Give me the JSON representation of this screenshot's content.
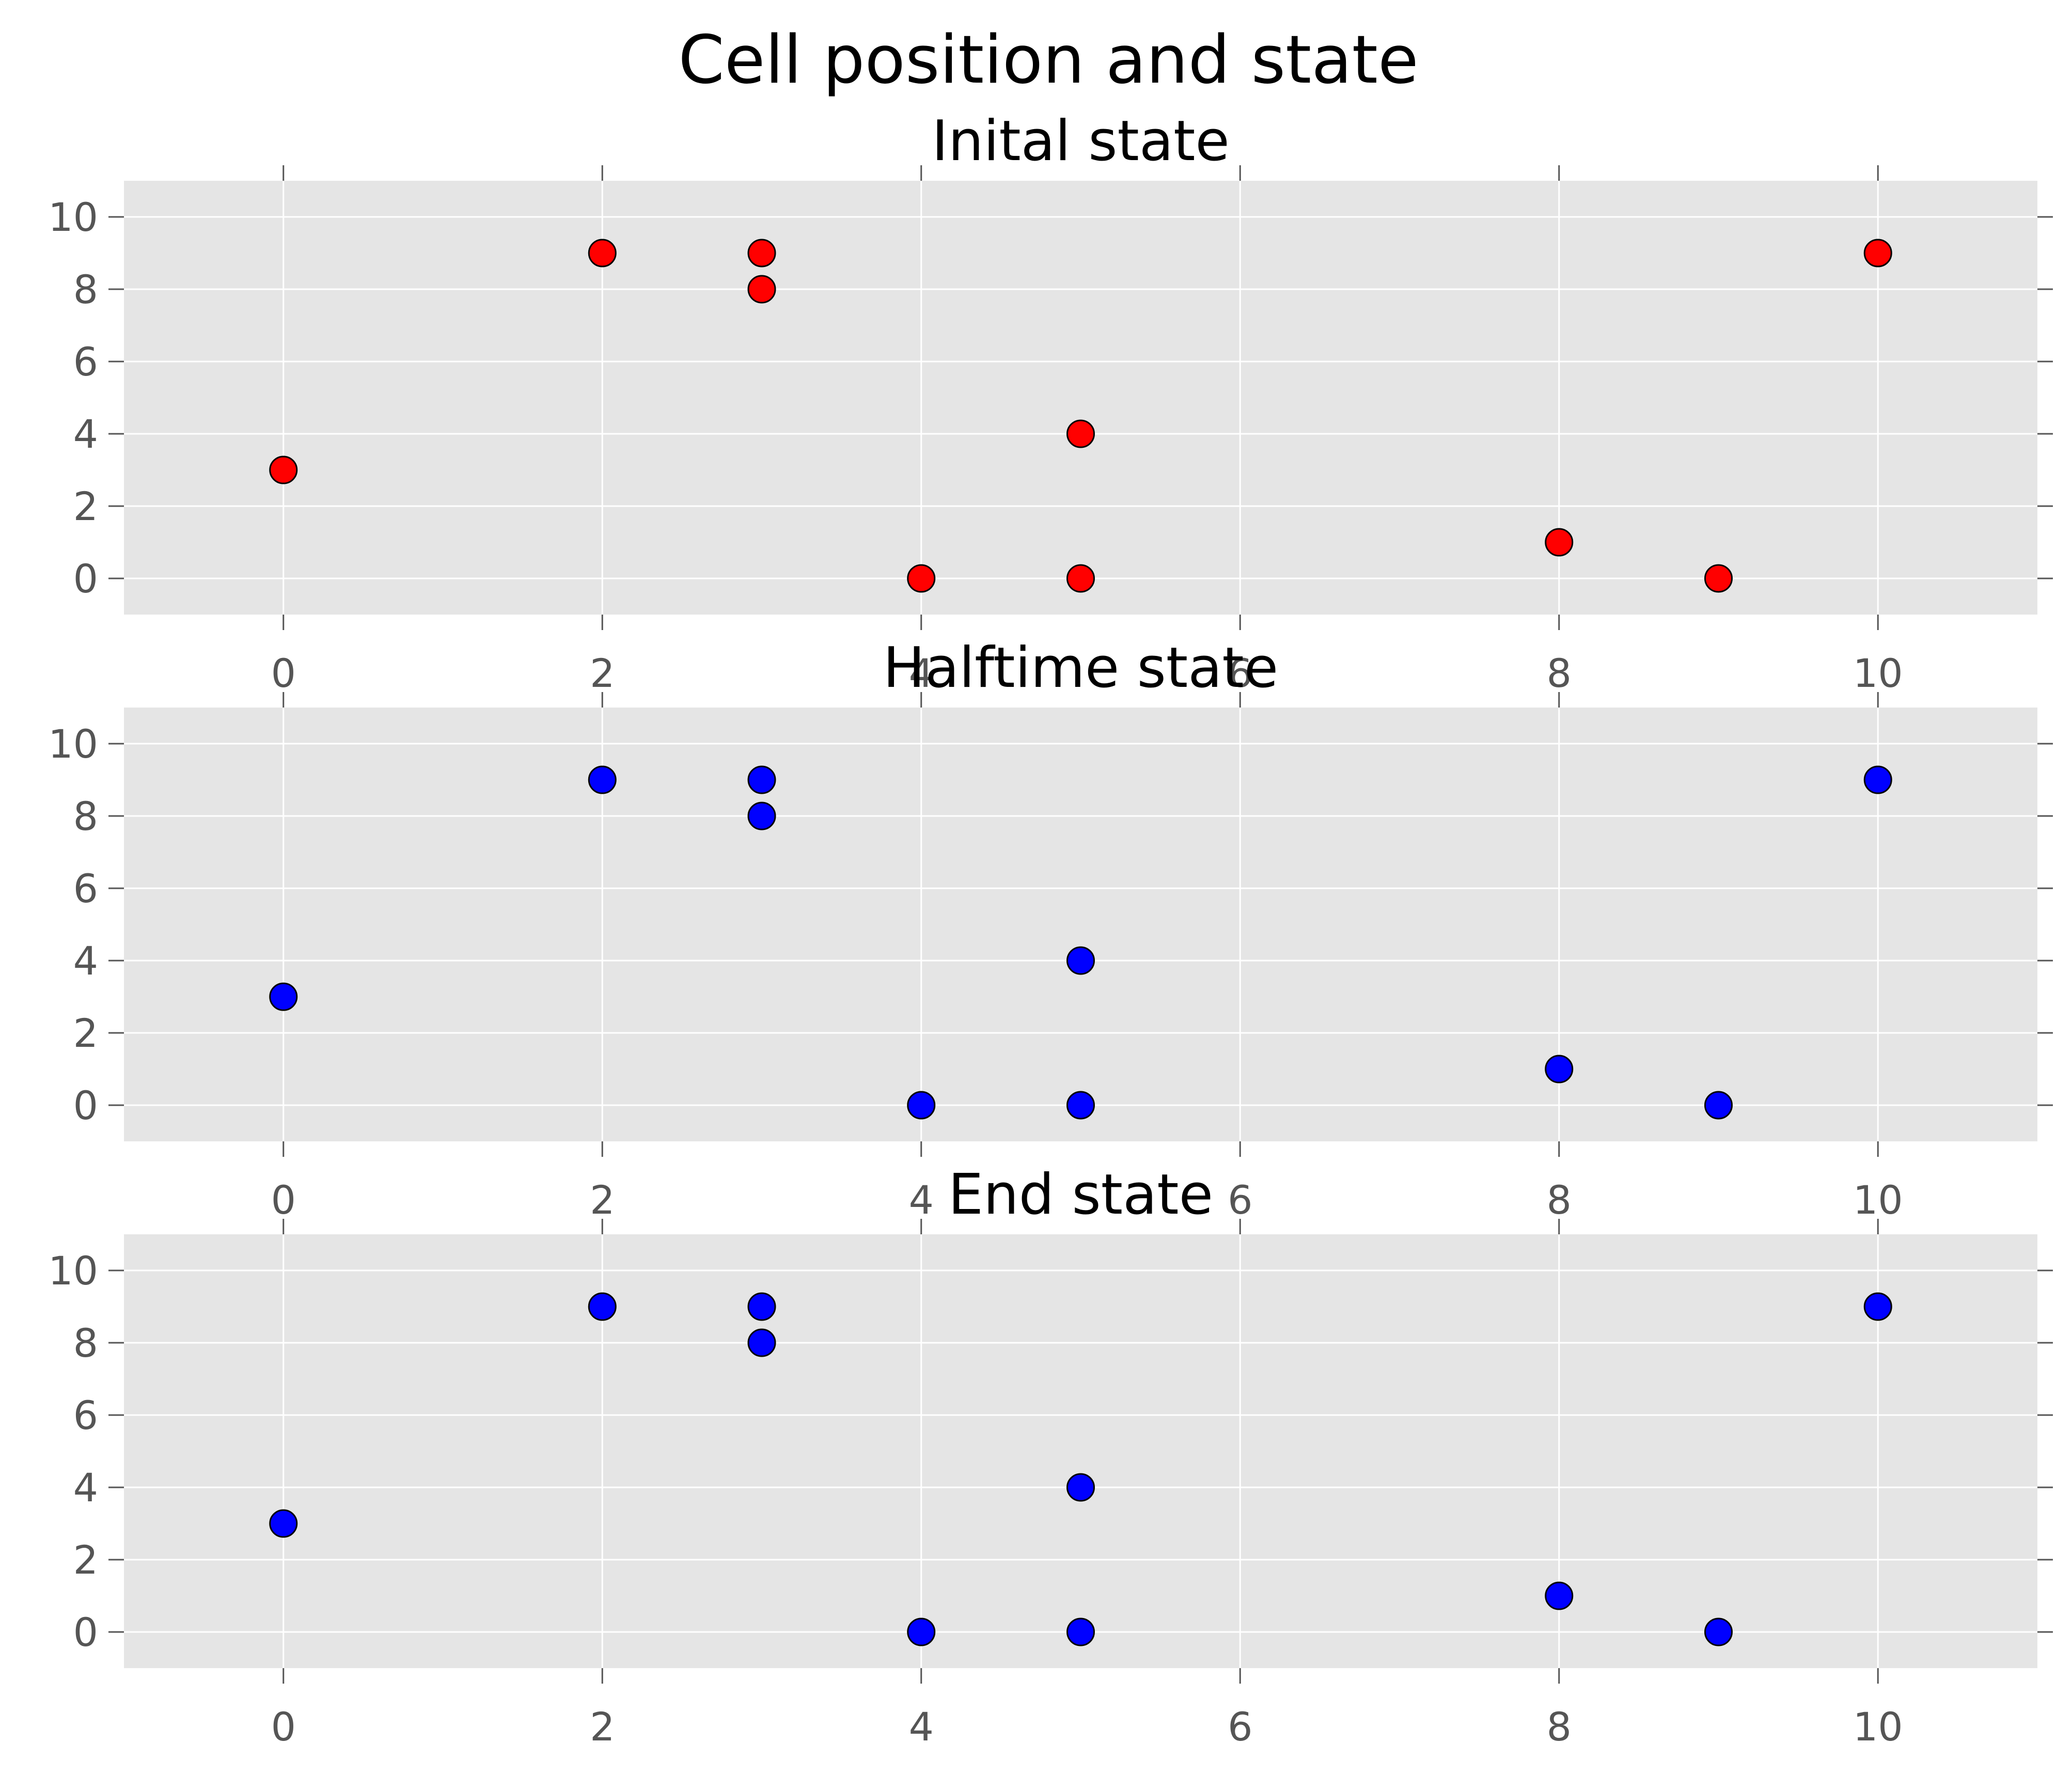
{
  "chart_data": {
    "title": "Cell position and state",
    "type": "scatter",
    "panels": [
      {
        "title": "Inital state",
        "marker_color": "#ff0000",
        "x": [
          0,
          2,
          3,
          3,
          4,
          5,
          5,
          8,
          9,
          10
        ],
        "y": [
          3,
          9,
          9,
          8,
          0,
          4,
          0,
          1,
          0,
          9
        ]
      },
      {
        "title": "Halftime state",
        "marker_color": "#0000ff",
        "x": [
          0,
          2,
          3,
          3,
          4,
          5,
          5,
          8,
          9,
          10
        ],
        "y": [
          3,
          9,
          9,
          8,
          0,
          4,
          0,
          1,
          0,
          9
        ]
      },
      {
        "title": "End state",
        "marker_color": "#0000ff",
        "x": [
          0,
          2,
          3,
          3,
          4,
          5,
          5,
          8,
          9,
          10
        ],
        "y": [
          3,
          9,
          9,
          8,
          0,
          4,
          0,
          1,
          0,
          9
        ]
      }
    ],
    "xlim": [
      -1,
      11
    ],
    "ylim": [
      -1,
      11
    ],
    "xticks": [
      "0",
      "2",
      "4",
      "6",
      "8",
      "10"
    ],
    "yticks": [
      "0",
      "2",
      "4",
      "6",
      "8",
      "10"
    ],
    "grid": true,
    "background": "#e5e5e5"
  }
}
